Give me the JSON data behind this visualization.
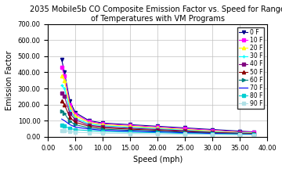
{
  "title_line1": "2035 Mobile5b CO Composite Emission Factor vs. Speed for Range",
  "title_line2": "of Temperatures with VM Programs",
  "xlabel": "Speed (mph)",
  "ylabel": "Emission Factor",
  "xlim": [
    0.0,
    40.0
  ],
  "ylim": [
    0.0,
    700.0
  ],
  "xticks": [
    0.0,
    5.0,
    10.0,
    15.0,
    20.0,
    25.0,
    30.0,
    35.0,
    40.0
  ],
  "yticks": [
    0.0,
    100.0,
    200.0,
    300.0,
    400.0,
    500.0,
    600.0,
    700.0
  ],
  "temperatures": [
    0,
    10,
    20,
    30,
    40,
    50,
    60,
    70,
    80,
    90
  ],
  "colors": [
    "#00008B",
    "#FF00FF",
    "#FFFF00",
    "#00FFFF",
    "#800080",
    "#8B0000",
    "#008080",
    "#0000FF",
    "#00CED1",
    "#B0E0E6"
  ],
  "markers": [
    "v",
    "s",
    "^",
    "+",
    "s",
    "^",
    ">",
    null,
    "s",
    "s"
  ],
  "speeds": [
    2.5,
    3.0,
    4.0,
    5.0,
    7.5,
    10.0,
    15.0,
    20.0,
    25.0,
    30.0,
    35.0,
    37.5
  ],
  "emission_data": {
    "0": [
      480,
      400,
      220,
      150,
      100,
      85,
      75,
      65,
      55,
      45,
      35,
      30
    ],
    "10": [
      430,
      380,
      200,
      140,
      95,
      80,
      70,
      60,
      50,
      40,
      30,
      28
    ],
    "20": [
      380,
      350,
      185,
      130,
      88,
      75,
      65,
      55,
      45,
      35,
      27,
      25
    ],
    "30": [
      320,
      300,
      165,
      115,
      80,
      68,
      58,
      50,
      40,
      30,
      24,
      22
    ],
    "40": [
      270,
      250,
      145,
      105,
      72,
      62,
      53,
      45,
      37,
      27,
      22,
      20
    ],
    "50": [
      220,
      200,
      120,
      90,
      65,
      55,
      47,
      40,
      33,
      25,
      20,
      18
    ],
    "60": [
      160,
      145,
      95,
      75,
      55,
      47,
      40,
      35,
      28,
      22,
      18,
      16
    ],
    "70": [
      110,
      100,
      75,
      60,
      48,
      40,
      35,
      30,
      25,
      20,
      16,
      15
    ],
    "80": [
      70,
      65,
      52,
      44,
      38,
      33,
      28,
      25,
      20,
      16,
      14,
      13
    ],
    "90": [
      40,
      38,
      32,
      28,
      25,
      22,
      20,
      18,
      16,
      14,
      12,
      11
    ]
  },
  "background_color": "#FFFFFF",
  "grid_color": "#C0C0C0",
  "title_fontsize": 7,
  "axis_fontsize": 7,
  "tick_fontsize": 6,
  "legend_fontsize": 5.5
}
